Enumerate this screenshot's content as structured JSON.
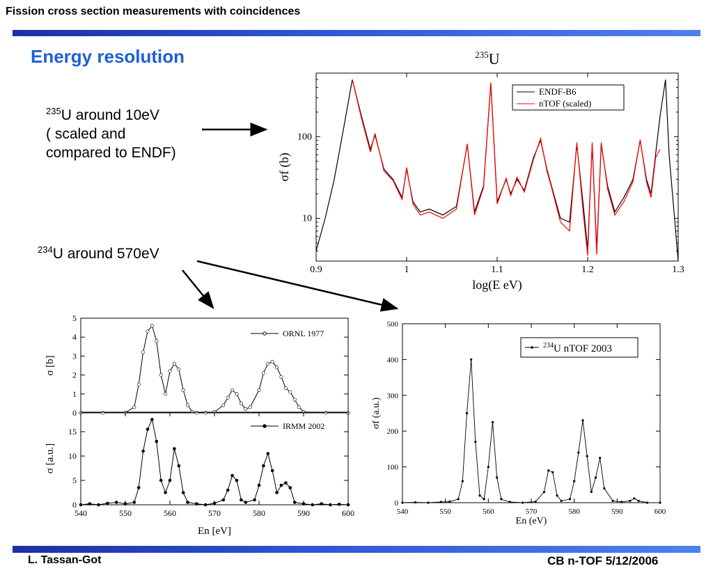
{
  "header": {
    "title": "Fission cross section measurements with coincidences"
  },
  "section_title": "Energy resolution",
  "notes": {
    "u235": {
      "sup": "235",
      "line1": "U around 10eV",
      "line2": "( scaled and",
      "line3": "compared to ENDF)"
    },
    "u234": {
      "sup": "234",
      "text": "U around 570eV"
    }
  },
  "footer": {
    "left": "L. Tassan-Got",
    "right": "CB n-TOF 5/12/2006"
  },
  "colors": {
    "bar": "#2f56d8",
    "title_blue": "#1f5fd6",
    "endf": "#000000",
    "ntof": "#ff0000"
  },
  "chart_data": [
    {
      "id": "u235",
      "type": "line",
      "title": "235U",
      "title_sup": "235",
      "title_base": "U",
      "xlabel": "log(E eV)",
      "ylabel": "σf (b)",
      "xlim": [
        0.9,
        1.3
      ],
      "ylim": [
        3,
        600
      ],
      "yscale": "log",
      "xticks": [
        "0.9",
        "1",
        "1.1",
        "1.2",
        "1.3"
      ],
      "yticks": [
        "10",
        "100"
      ],
      "legend": [
        "ENDF-B6",
        "nTOF (scaled)"
      ],
      "legend_position": "top-right",
      "series": [
        {
          "name": "ENDF-B6",
          "x": [
            0.9,
            0.91,
            0.92,
            0.93,
            0.94,
            0.95,
            0.96,
            0.965,
            0.975,
            0.985,
            0.995,
            1.0,
            1.007,
            1.015,
            1.025,
            1.04,
            1.055,
            1.067,
            1.075,
            1.085,
            1.093,
            1.1,
            1.11,
            1.115,
            1.122,
            1.13,
            1.14,
            1.148,
            1.155,
            1.16,
            1.17,
            1.18,
            1.188,
            1.195,
            1.2,
            1.205,
            1.21,
            1.215,
            1.222,
            1.23,
            1.24,
            1.25,
            1.258,
            1.265,
            1.27,
            1.275,
            1.28,
            1.286,
            1.29,
            1.3
          ],
          "y": [
            4,
            10,
            30,
            120,
            500,
            180,
            70,
            105,
            40,
            30,
            18,
            40,
            16,
            12,
            13,
            11,
            14,
            80,
            12,
            25,
            450,
            16,
            30,
            20,
            30,
            22,
            55,
            90,
            40,
            25,
            10,
            9,
            80,
            15,
            4.2,
            80,
            4.2,
            80,
            25,
            12,
            18,
            30,
            90,
            30,
            20,
            60,
            180,
            500,
            60,
            3
          ]
        },
        {
          "name": "nTOF (scaled)",
          "x": [
            0.94,
            0.95,
            0.96,
            0.965,
            0.975,
            0.985,
            0.995,
            1.0,
            1.007,
            1.015,
            1.025,
            1.04,
            1.055,
            1.067,
            1.075,
            1.085,
            1.093,
            1.1,
            1.11,
            1.115,
            1.122,
            1.13,
            1.14,
            1.148,
            1.155,
            1.16,
            1.17,
            1.18,
            1.188,
            1.195,
            1.2,
            1.205,
            1.21,
            1.215,
            1.222,
            1.23,
            1.24,
            1.25,
            1.258,
            1.265,
            1.27,
            1.275,
            1.28
          ],
          "y": [
            500,
            170,
            65,
            110,
            38,
            29,
            17,
            42,
            15,
            11,
            12,
            10,
            13,
            82,
            11,
            24,
            460,
            15,
            31,
            19,
            32,
            21,
            52,
            95,
            38,
            24,
            9,
            7,
            85,
            12,
            3.5,
            85,
            3.6,
            85,
            23,
            11,
            16,
            28,
            92,
            28,
            18,
            55,
            70
          ]
        }
      ]
    },
    {
      "id": "ornl",
      "type": "line",
      "xlabel": "",
      "ylabel": "σ [b]",
      "xlim": [
        540,
        600
      ],
      "ylim": [
        0,
        5
      ],
      "yticks": [
        "0",
        "1",
        "2",
        "3",
        "4",
        "5"
      ],
      "legend": [
        "ORNL 1977"
      ],
      "legend_position": "top-right",
      "series": [
        {
          "name": "ORNL 1977",
          "x": [
            540,
            545,
            550,
            552,
            553,
            554,
            555,
            556,
            557,
            558,
            559,
            560,
            561,
            562,
            563,
            564,
            565,
            566,
            568,
            570,
            572,
            573,
            574,
            575,
            576,
            577,
            578,
            580,
            581,
            582,
            583,
            584,
            585,
            586,
            587,
            588,
            589,
            590,
            595,
            600
          ],
          "y": [
            0,
            0,
            0.02,
            0.3,
            1.5,
            3.2,
            4.3,
            4.6,
            3.8,
            2.0,
            1.0,
            2.2,
            2.6,
            2.3,
            1.2,
            0.4,
            0.05,
            0,
            0,
            0.05,
            0.4,
            0.8,
            1.2,
            1.0,
            0.5,
            0.2,
            0.3,
            1.2,
            2.1,
            2.6,
            2.7,
            2.4,
            1.9,
            1.3,
            1.1,
            0.7,
            0.3,
            0.05,
            0,
            0
          ]
        }
      ]
    },
    {
      "id": "irmm",
      "type": "line",
      "xlabel": "En [eV]",
      "ylabel": "σ [a.u.]",
      "xlim": [
        540,
        600
      ],
      "ylim": [
        0,
        19
      ],
      "xticks": [
        "540",
        "550",
        "560",
        "570",
        "580",
        "590",
        "600"
      ],
      "yticks": [
        "0",
        "5",
        "10",
        "15"
      ],
      "legend": [
        "IRMM 2002"
      ],
      "legend_position": "top-right",
      "series": [
        {
          "name": "IRMM 2002",
          "x": [
            540,
            542,
            544,
            546,
            548,
            550,
            552,
            553,
            554,
            555,
            556,
            557,
            558,
            559,
            560,
            561,
            562,
            563,
            564,
            566,
            568,
            570,
            572,
            573,
            574,
            575,
            576,
            577,
            579,
            580,
            581,
            582,
            583,
            584,
            585,
            586,
            587,
            588,
            590,
            592,
            594,
            596,
            598,
            600
          ],
          "y": [
            0,
            0.2,
            0,
            0.3,
            0.5,
            0.2,
            0.5,
            3.5,
            11,
            15.5,
            17.5,
            13,
            5,
            2.5,
            5,
            11.5,
            8,
            2.5,
            0.5,
            0.2,
            0,
            0.3,
            1,
            3,
            6,
            5,
            1,
            0.5,
            1,
            4,
            8,
            10.5,
            7,
            2.5,
            4,
            4.5,
            3.5,
            0.5,
            0.2,
            0,
            0.2,
            0,
            0.1,
            0
          ]
        }
      ]
    },
    {
      "id": "ntof234",
      "type": "line",
      "xlabel": "En (eV)",
      "ylabel": "σf (a.u.)",
      "xlim": [
        540,
        600
      ],
      "ylim": [
        0,
        500
      ],
      "xticks": [
        "540",
        "550",
        "560",
        "570",
        "580",
        "590",
        "600"
      ],
      "yticks": [
        "0",
        "100",
        "200",
        "300",
        "400",
        "500"
      ],
      "legend": [
        "234U nTOF 2003"
      ],
      "legend_sup": "234",
      "legend_base": "U nTOF 2003",
      "legend_position": "top-right",
      "series": [
        {
          "name": "234U nTOF 2003",
          "x": [
            540,
            543,
            546,
            549,
            551,
            553,
            554,
            555,
            556,
            557,
            558,
            559,
            560,
            561,
            562,
            563,
            565,
            568,
            571,
            573,
            574,
            575,
            576,
            577,
            579,
            580,
            581,
            582,
            583,
            584,
            585,
            586,
            587,
            589,
            591,
            593,
            594,
            595,
            597,
            600
          ],
          "y": [
            0,
            1,
            0,
            2,
            3,
            10,
            60,
            250,
            400,
            170,
            20,
            10,
            100,
            225,
            70,
            10,
            2,
            0,
            3,
            30,
            90,
            85,
            20,
            5,
            10,
            60,
            140,
            230,
            130,
            30,
            70,
            125,
            40,
            5,
            2,
            5,
            12,
            5,
            0,
            0
          ]
        }
      ]
    }
  ]
}
